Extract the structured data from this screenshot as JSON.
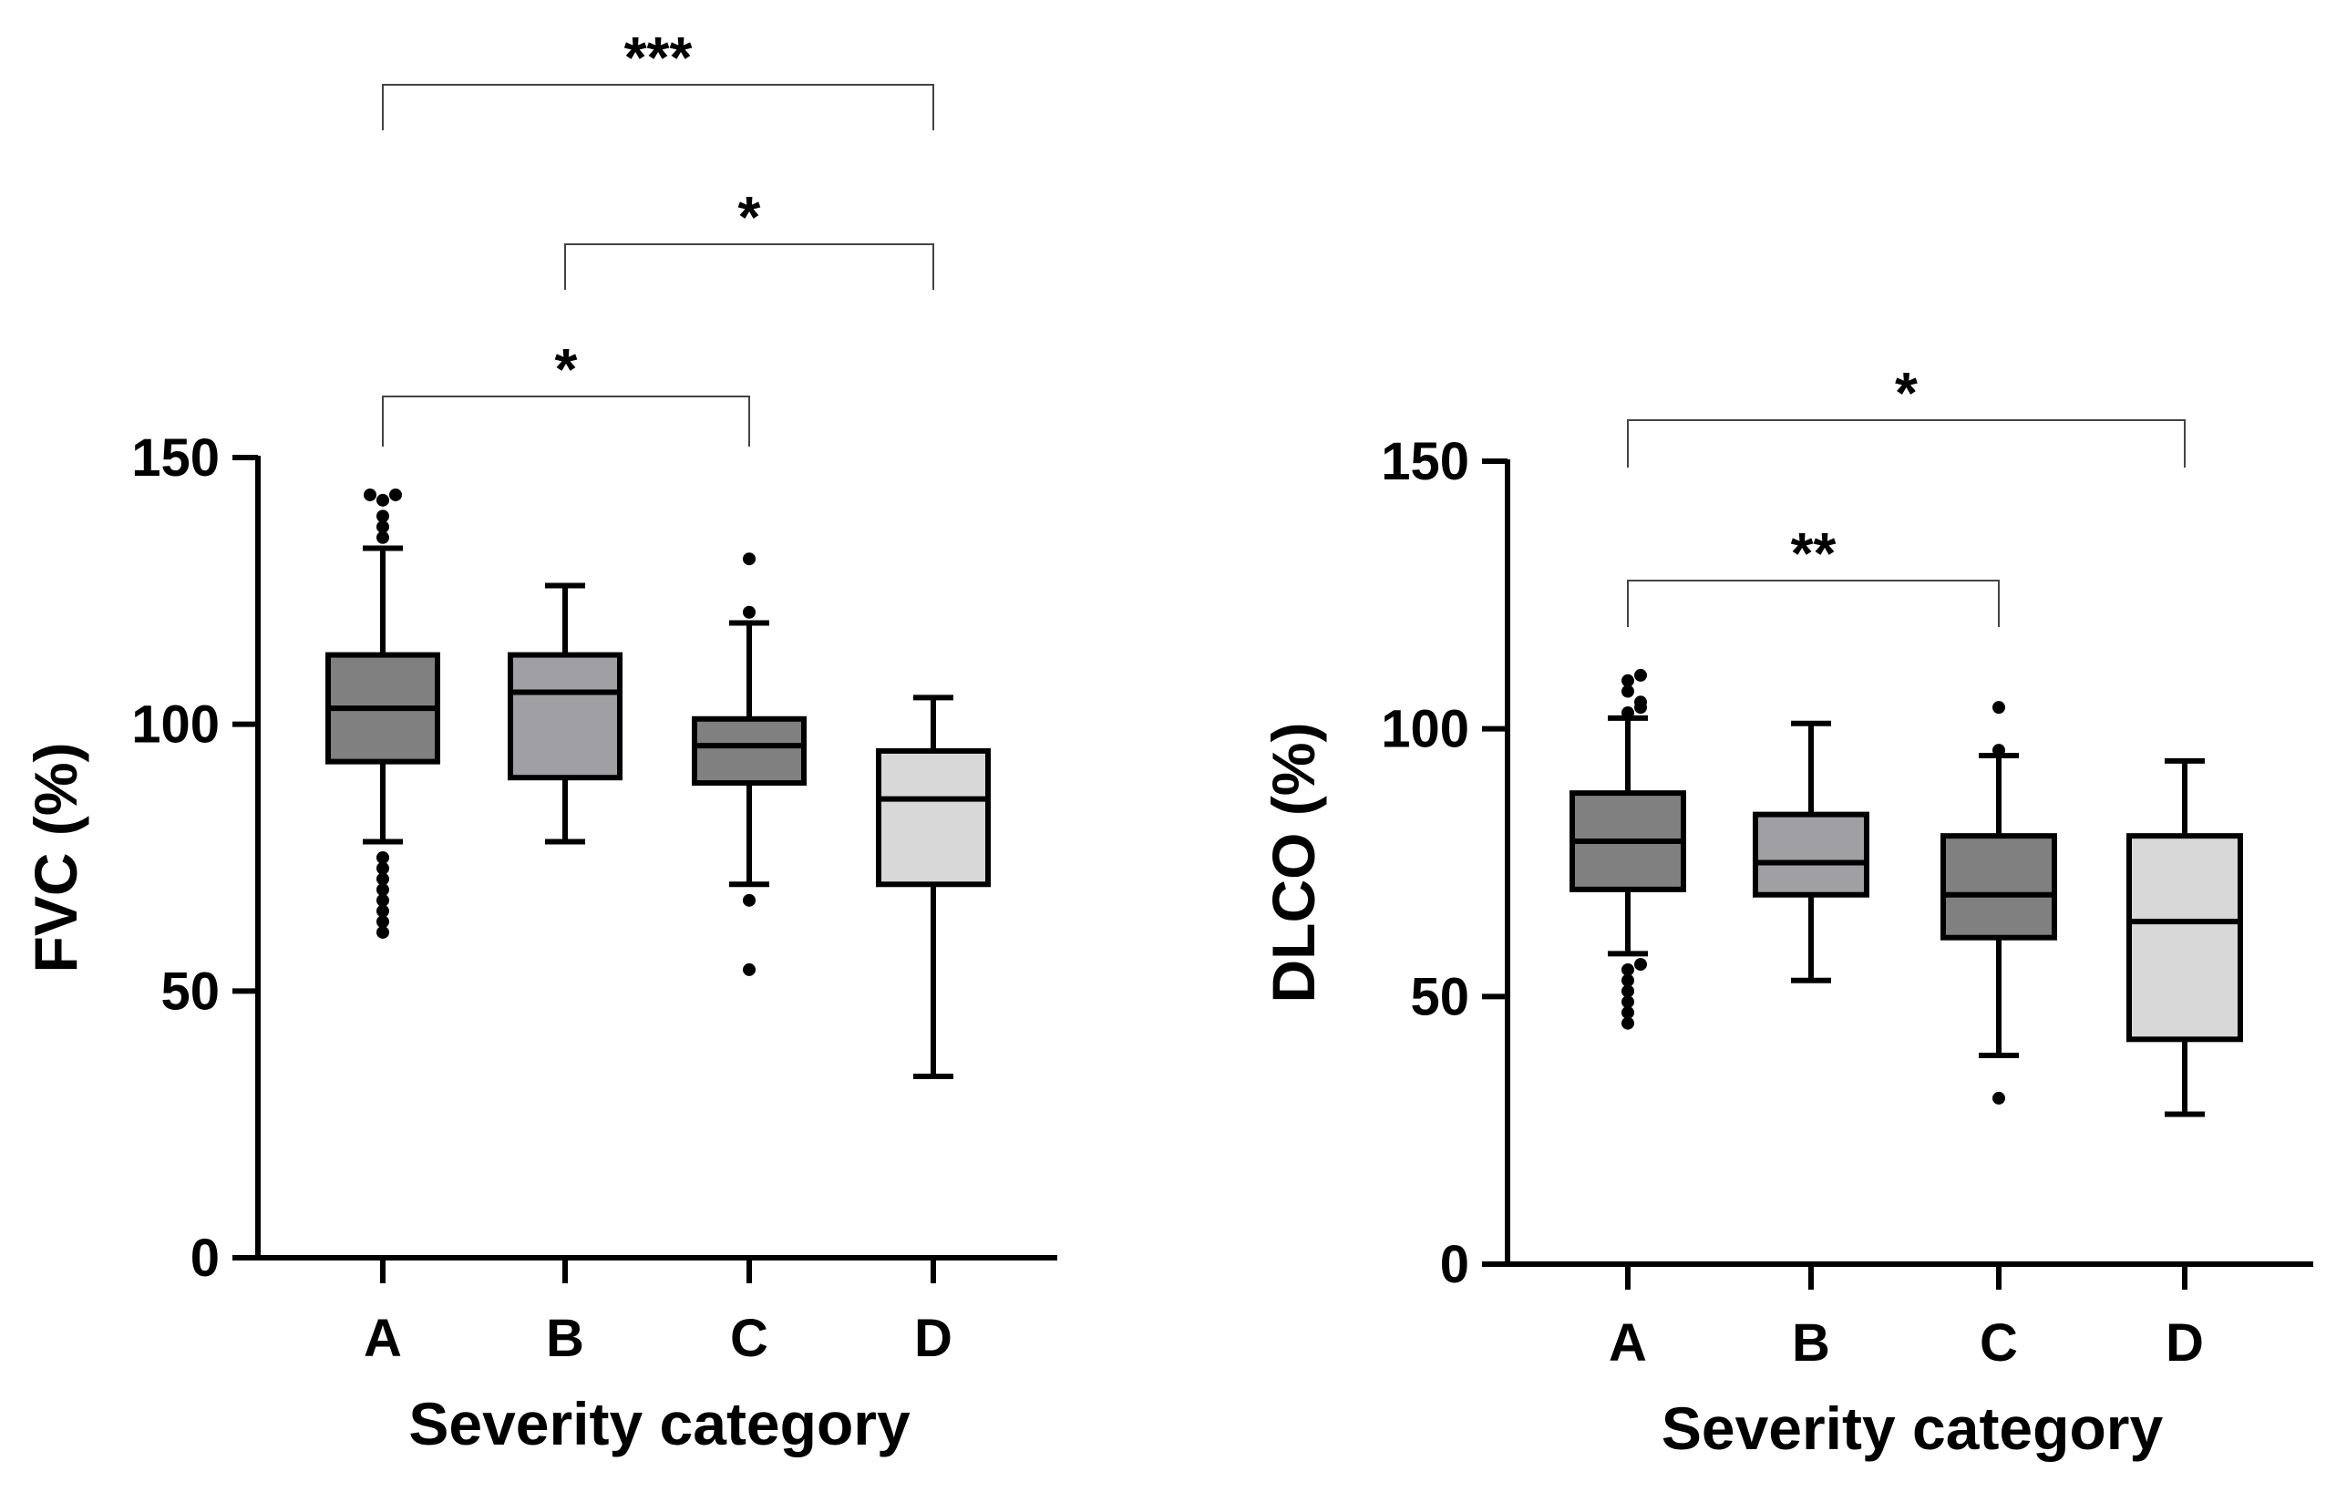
{
  "chart_data": [
    {
      "type": "box",
      "ylabel": "FVC (%)",
      "xlabel": "Severity category",
      "ylim": [
        0,
        150
      ],
      "yticks": [
        0,
        50,
        100,
        150
      ],
      "yticklabels": [
        "0",
        "50",
        "100",
        "150"
      ],
      "categories": [
        "A",
        "B",
        "C",
        "D"
      ],
      "boxes": [
        {
          "category": "A",
          "whisker_low": 78,
          "q1": 93,
          "median": 103,
          "q3": 113,
          "whisker_high": 133,
          "fill": "#808080",
          "outliers": [
            61,
            63,
            65,
            67,
            69,
            71,
            73,
            75,
            135,
            137,
            139,
            142,
            143,
            143
          ]
        },
        {
          "category": "B",
          "whisker_low": 78,
          "q1": 90,
          "median": 106,
          "q3": 113,
          "whisker_high": 126,
          "fill": "#a0a0a4",
          "outliers": []
        },
        {
          "category": "C",
          "whisker_low": 70,
          "q1": 89,
          "median": 96,
          "q3": 101,
          "whisker_high": 119,
          "fill": "#808080",
          "outliers": [
            54,
            67,
            121,
            131
          ]
        },
        {
          "category": "D",
          "whisker_low": 34,
          "q1": 70,
          "median": 86,
          "q3": 95,
          "whisker_high": 105,
          "fill": "#d8d8d8",
          "outliers": []
        }
      ],
      "significance": [
        {
          "from": "A",
          "to": "C",
          "label": "*"
        },
        {
          "from": "B",
          "to": "D",
          "label": "*"
        },
        {
          "from": "A",
          "to": "D",
          "label": "***"
        }
      ]
    },
    {
      "type": "box",
      "ylabel": "DLCO (%)",
      "xlabel": "Severity category",
      "ylim": [
        0,
        150
      ],
      "yticks": [
        0,
        50,
        100,
        150
      ],
      "yticklabels": [
        "0",
        "50",
        "100",
        "150"
      ],
      "categories": [
        "A",
        "B",
        "C",
        "D"
      ],
      "boxes": [
        {
          "category": "A",
          "whisker_low": 58,
          "q1": 70,
          "median": 79,
          "q3": 88,
          "whisker_high": 102,
          "fill": "#808080",
          "outliers": [
            45,
            47,
            49,
            51,
            53,
            55,
            56,
            103,
            104,
            105,
            107,
            109,
            110
          ]
        },
        {
          "category": "B",
          "whisker_low": 53,
          "q1": 69,
          "median": 75,
          "q3": 84,
          "whisker_high": 101,
          "fill": "#a0a0a4",
          "outliers": []
        },
        {
          "category": "C",
          "whisker_low": 39,
          "q1": 61,
          "median": 69,
          "q3": 80,
          "whisker_high": 95,
          "fill": "#808080",
          "outliers": [
            31,
            96,
            104
          ]
        },
        {
          "category": "D",
          "whisker_low": 28,
          "q1": 42,
          "median": 64,
          "q3": 80,
          "whisker_high": 94,
          "fill": "#d8d8d8",
          "outliers": []
        }
      ],
      "significance": [
        {
          "from": "A",
          "to": "C",
          "label": "**"
        },
        {
          "from": "A",
          "to": "D",
          "label": "*"
        }
      ]
    }
  ]
}
